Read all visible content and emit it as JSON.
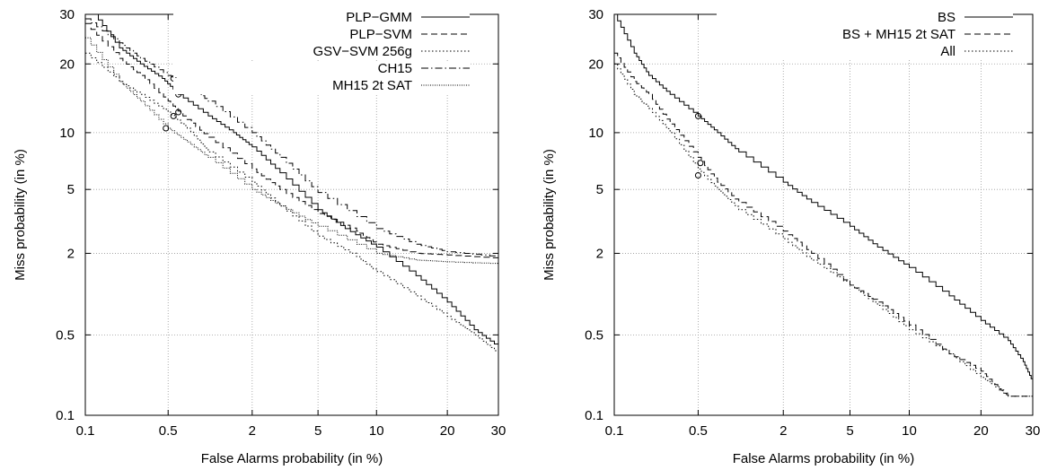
{
  "chart_data": [
    {
      "type": "line",
      "title": "",
      "xlabel": "False Alarms probability (in %)",
      "ylabel": "Miss probability (in %)",
      "x_scale": "probit",
      "y_scale": "probit",
      "xlim": [
        0.1,
        30
      ],
      "ylim": [
        0.1,
        30
      ],
      "x_ticks": [
        0.1,
        0.5,
        2,
        5,
        10,
        20,
        30
      ],
      "x_tick_labels": [
        "0.1",
        "0.5",
        "2",
        "5",
        "10",
        "20",
        "30"
      ],
      "y_ticks": [
        0.1,
        0.5,
        2,
        5,
        10,
        20,
        30
      ],
      "y_tick_labels": [
        "0.1",
        "0.5",
        "2",
        "5",
        "10",
        "20",
        "30"
      ],
      "grid": true,
      "legend_position": "top-right",
      "series": [
        {
          "name": "PLP−GMM",
          "dash": "solid",
          "x": [
            0.12,
            0.2,
            0.3,
            0.45,
            0.6,
            1.0,
            1.5,
            2.0,
            3.0,
            5.0,
            7.0,
            10.0,
            15.0,
            20.0,
            25.0,
            30.0
          ],
          "y": [
            30,
            23,
            20,
            17.5,
            15,
            12,
            10,
            8.5,
            6.2,
            3.8,
            2.9,
            2.2,
            1.4,
            0.9,
            0.55,
            0.4
          ],
          "marker": [
            0.6,
            15
          ]
        },
        {
          "name": "PLP−SVM",
          "dash": "dash",
          "x": [
            0.1,
            0.2,
            0.3,
            0.5,
            0.65,
            1.0,
            2.0,
            3.0,
            5.0,
            8.0,
            10.0,
            15.0,
            20.0,
            30.0
          ],
          "y": [
            28,
            21,
            18,
            14,
            12,
            9.5,
            6.5,
            5.0,
            3.6,
            2.8,
            2.3,
            2.0,
            1.95,
            1.85
          ],
          "marker": [
            0.6,
            12.5
          ]
        },
        {
          "name": "GSV−SVM 256g",
          "dash": "dot",
          "x": [
            0.1,
            0.2,
            0.3,
            0.5,
            0.7,
            1.0,
            2.0,
            3.0,
            5.0,
            8.0,
            10.0,
            15.0,
            20.0,
            25.0,
            30.0
          ],
          "y": [
            22,
            17,
            15,
            12.5,
            10.5,
            8.0,
            5.5,
            4.0,
            2.6,
            1.9,
            1.5,
            1.0,
            0.7,
            0.5,
            0.35
          ],
          "marker": [
            0.55,
            12
          ]
        },
        {
          "name": "CH15",
          "dash": "dashdot",
          "x": [
            0.1,
            0.2,
            0.3,
            0.5,
            0.7,
            1.0,
            2.0,
            3.0,
            5.0,
            10.0,
            15.0,
            20.0,
            30.0
          ],
          "y": [
            29,
            24,
            21,
            18,
            16.5,
            14,
            10,
            7.5,
            4.8,
            2.9,
            2.3,
            2.05,
            1.9
          ],
          "marker": [
            0.55,
            17.5
          ]
        },
        {
          "name": "MH15 2t SAT",
          "dash": "densedot",
          "x": [
            0.1,
            0.2,
            0.3,
            0.5,
            0.7,
            1.0,
            2.0,
            3.0,
            5.0,
            10.0,
            15.0,
            20.0,
            30.0
          ],
          "y": [
            25,
            17,
            14,
            10.5,
            9.0,
            7.5,
            5.0,
            4.0,
            3.0,
            2.0,
            1.8,
            1.75,
            1.7
          ],
          "marker": [
            0.48,
            10.5
          ]
        }
      ]
    },
    {
      "type": "line",
      "title": "",
      "xlabel": "False Alarms probability (in %)",
      "ylabel": "Miss probability (in %)",
      "x_scale": "probit",
      "y_scale": "probit",
      "xlim": [
        0.1,
        30
      ],
      "ylim": [
        0.1,
        30
      ],
      "x_ticks": [
        0.1,
        0.5,
        2,
        5,
        10,
        20,
        30
      ],
      "x_tick_labels": [
        "0.1",
        "0.5",
        "2",
        "5",
        "10",
        "20",
        "30"
      ],
      "y_ticks": [
        0.1,
        0.5,
        2,
        5,
        10,
        20,
        30
      ],
      "y_tick_labels": [
        "0.1",
        "0.5",
        "2",
        "5",
        "10",
        "20",
        "30"
      ],
      "grid": true,
      "legend_position": "top-right",
      "series": [
        {
          "name": "BS",
          "dash": "solid",
          "x": [
            0.1,
            0.15,
            0.2,
            0.3,
            0.5,
            0.7,
            1.0,
            2.0,
            3.0,
            5.0,
            7.0,
            10.0,
            15.0,
            20.0,
            25.0,
            28.0,
            30.0
          ],
          "y": [
            30,
            22,
            18,
            15,
            12,
            10,
            8.0,
            5.5,
            4.2,
            3.0,
            2.2,
            1.6,
            1.0,
            0.65,
            0.45,
            0.3,
            0.2
          ],
          "marker": [
            0.5,
            12
          ]
        },
        {
          "name": "BS + MH15 2t SAT",
          "dash": "dash",
          "x": [
            0.1,
            0.15,
            0.2,
            0.3,
            0.5,
            0.7,
            1.0,
            2.0,
            3.0,
            5.0,
            7.0,
            10.0,
            15.0,
            20.0,
            23.0,
            25.0,
            30.0
          ],
          "y": [
            22,
            17,
            15,
            11,
            7.5,
            5.5,
            4.2,
            2.8,
            2.0,
            1.2,
            0.9,
            0.6,
            0.35,
            0.25,
            0.18,
            0.15,
            0.15
          ],
          "marker": [
            0.52,
            7
          ]
        },
        {
          "name": "All",
          "dash": "dot",
          "x": [
            0.1,
            0.15,
            0.2,
            0.3,
            0.5,
            0.7,
            1.0,
            2.0,
            3.0,
            5.0,
            7.0,
            10.0,
            15.0,
            20.0,
            25.0,
            30.0
          ],
          "y": [
            20,
            15,
            13,
            10,
            6.5,
            5.0,
            3.8,
            2.5,
            1.8,
            1.2,
            0.85,
            0.55,
            0.35,
            0.22,
            0.15,
            0.15
          ],
          "marker": [
            0.5,
            6
          ]
        }
      ]
    }
  ]
}
